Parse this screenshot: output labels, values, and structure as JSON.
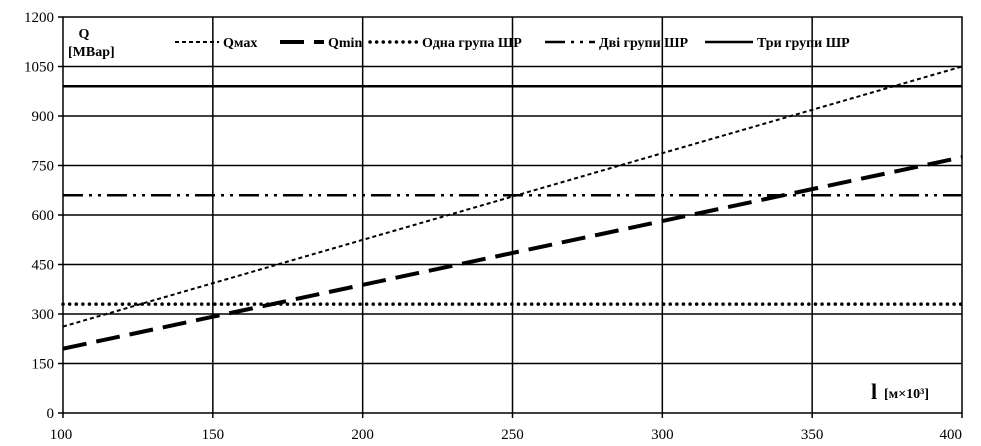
{
  "chart_data": {
    "type": "line",
    "ylabel_symbol": "Q",
    "ylabel_unit": "[МВар]",
    "xlabel_symbol": "l",
    "xlabel_unit": "[м×10³]",
    "xlim": [
      100,
      400
    ],
    "ylim": [
      0,
      1200
    ],
    "x_ticks": [
      "100",
      "150",
      "200",
      "250",
      "300",
      "350",
      "400"
    ],
    "y_ticks": [
      "0",
      "150",
      "300",
      "450",
      "600",
      "750",
      "900",
      "1050",
      "1200"
    ],
    "grid": true,
    "legend_position": "top",
    "series": [
      {
        "name": "Qмах",
        "style": "dotted-short",
        "x": [
          100,
          400
        ],
        "y": [
          262,
          1050
        ]
      },
      {
        "name": "Qmin",
        "style": "long-dash",
        "x": [
          100,
          400
        ],
        "y": [
          195,
          775
        ]
      },
      {
        "name": "Одна група ШР",
        "style": "dotted",
        "x": [
          100,
          400
        ],
        "y": [
          330,
          330
        ]
      },
      {
        "name": "Дві групи ШР",
        "style": "dash-dot-dot",
        "x": [
          100,
          400
        ],
        "y": [
          660,
          660
        ]
      },
      {
        "name": "Три групи ШР",
        "style": "solid",
        "x": [
          100,
          400
        ],
        "y": [
          990,
          990
        ]
      }
    ]
  }
}
